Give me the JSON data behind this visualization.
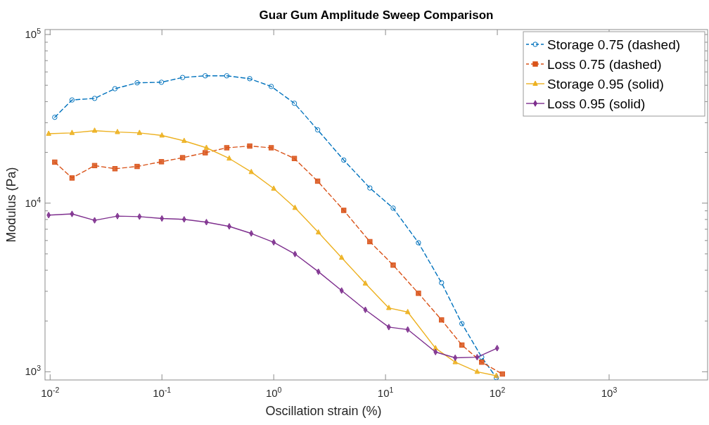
{
  "chart_data": {
    "type": "line",
    "title": "Guar Gum Amplitude Sweep Comparison",
    "xlabel": "Oscillation strain (%)",
    "ylabel": "Modulus (Pa)",
    "log": "xy",
    "legend": "top right",
    "xlim": [
      0.009,
      7600
    ],
    "ylim": [
      894,
      107000
    ],
    "xticks": [
      {
        "value": 0.01,
        "label": "10$^{-2}$"
      },
      {
        "value": 0.1,
        "label": "10$^{-1}$"
      },
      {
        "value": 1,
        "label": "10$^{0}$"
      },
      {
        "value": 10,
        "label": "10$^{1}$"
      },
      {
        "value": 100,
        "label": "10$^{2}$"
      },
      {
        "value": 1000,
        "label": "10$^{3}$"
      }
    ],
    "yticks": [
      {
        "value": 1000,
        "label": "10$^{3}$"
      },
      {
        "value": 2000,
        "label": null
      },
      {
        "value": 3000,
        "label": null
      },
      {
        "value": 4000,
        "label": null
      },
      {
        "value": 5000,
        "label": null
      },
      {
        "value": 6000,
        "label": null
      },
      {
        "value": 7000,
        "label": null
      },
      {
        "value": 8000,
        "label": null
      },
      {
        "value": 9000,
        "label": null
      },
      {
        "value": 10000,
        "label": "10$^{4}$"
      },
      {
        "value": 20000,
        "label": null
      },
      {
        "value": 30000,
        "label": null
      },
      {
        "value": 40000,
        "label": null
      },
      {
        "value": 50000,
        "label": null
      },
      {
        "value": 60000,
        "label": null
      },
      {
        "value": 70000,
        "label": null
      },
      {
        "value": 80000,
        "label": null
      },
      {
        "value": 90000,
        "label": null
      },
      {
        "value": 100000,
        "label": "10$^{5}$"
      }
    ],
    "series": [
      {
        "name": "Storage 0.75 (dashed)",
        "color": "#0072bd",
        "marker": "circle",
        "line_style": "dashed",
        "x": [
          0.011,
          0.0157,
          0.025,
          0.038,
          0.06,
          0.099,
          0.153,
          0.244,
          0.38,
          0.61,
          0.95,
          1.53,
          2.47,
          4.23,
          7.24,
          11.7,
          19.7,
          31.7,
          48.2,
          72.5,
          98
        ],
        "values": [
          32300,
          40900,
          41800,
          47700,
          51700,
          52100,
          55600,
          56900,
          56900,
          54700,
          49200,
          39100,
          27200,
          18000,
          12300,
          9340,
          5820,
          3370,
          1930,
          1220,
          922
        ]
      },
      {
        "name": "Loss 0.75 (dashed)",
        "color": "#d95319",
        "marker": "square",
        "line_style": "dashed",
        "x": [
          0.011,
          0.0157,
          0.025,
          0.038,
          0.06,
          0.099,
          0.153,
          0.244,
          0.38,
          0.61,
          0.95,
          1.53,
          2.47,
          4.23,
          7.24,
          11.7,
          19.7,
          31.7,
          48.2,
          72.5,
          111
        ],
        "values": [
          17500,
          14100,
          16700,
          16000,
          16500,
          17600,
          18600,
          19900,
          21300,
          21800,
          21300,
          18400,
          13500,
          9060,
          5910,
          4290,
          2920,
          2030,
          1440,
          1140,
          970
        ]
      },
      {
        "name": "Storage 0.95 (solid)",
        "color": "#edb120",
        "marker": "triangle",
        "line_style": "solid",
        "x": [
          0.0097,
          0.0157,
          0.025,
          0.04,
          0.063,
          0.1,
          0.158,
          0.25,
          0.4,
          0.63,
          1.0,
          1.55,
          2.51,
          4.05,
          6.6,
          10.7,
          15.8,
          28,
          42,
          66,
          98
        ],
        "values": [
          25800,
          26100,
          26900,
          26400,
          26100,
          25200,
          23400,
          21300,
          18400,
          15300,
          12200,
          9380,
          6710,
          4750,
          3340,
          2390,
          2260,
          1380,
          1140,
          1000,
          947
        ]
      },
      {
        "name": "Loss 0.95 (solid)",
        "color": "#7e2f8e",
        "marker": "diamond",
        "line_style": "solid",
        "x": [
          0.0097,
          0.0157,
          0.025,
          0.04,
          0.063,
          0.1,
          0.158,
          0.25,
          0.4,
          0.63,
          1.0,
          1.55,
          2.51,
          4.05,
          6.6,
          10.7,
          15.8,
          28,
          42,
          66,
          99.6
        ],
        "values": [
          8490,
          8630,
          7910,
          8380,
          8320,
          8110,
          8010,
          7710,
          7280,
          6610,
          5860,
          4990,
          3920,
          3030,
          2330,
          1840,
          1780,
          1310,
          1210,
          1220,
          1380
        ]
      }
    ]
  }
}
